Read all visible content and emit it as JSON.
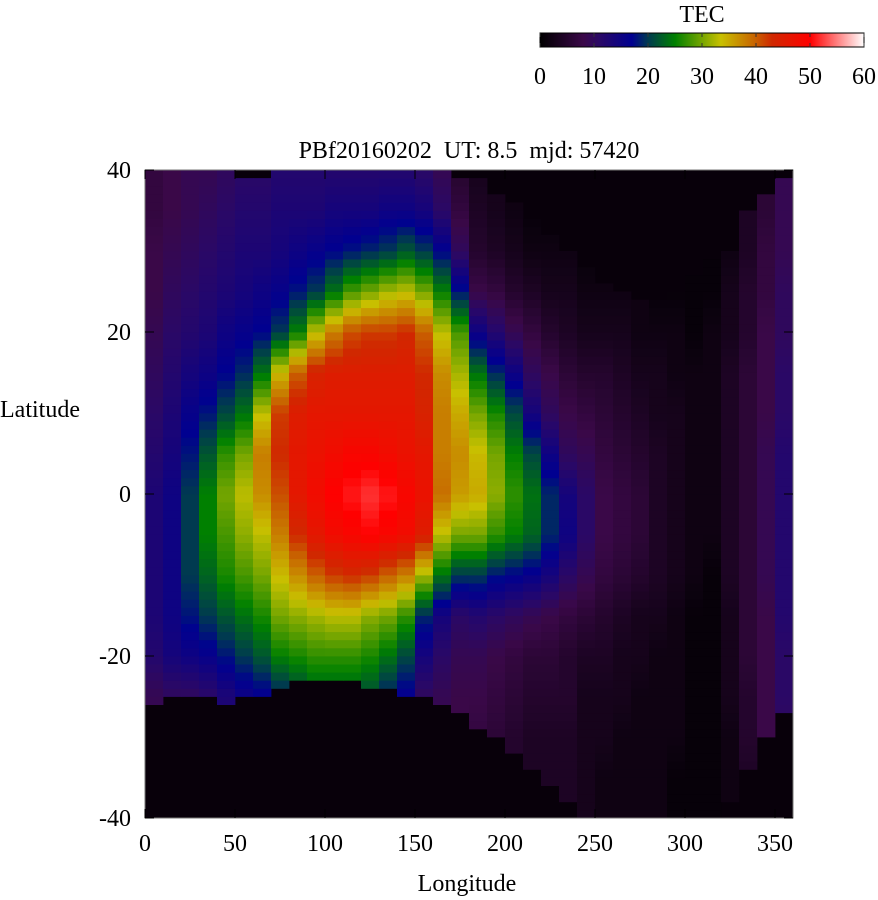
{
  "chart_data": {
    "type": "heatmap",
    "title": "PBf20160202  UT: 8.5  mjd: 57420",
    "xlabel": "Longitude",
    "ylabel": "Latitude",
    "xlim": [
      0,
      360
    ],
    "ylim": [
      -40,
      40
    ],
    "xticks": [
      "0",
      "50",
      "100",
      "150",
      "200",
      "250",
      "300",
      "350"
    ],
    "yticks": [
      "40",
      "20",
      "0",
      "-20",
      "-40"
    ],
    "colorbar": {
      "label": "TEC",
      "range": [
        0,
        60
      ],
      "ticks": [
        "0",
        "10",
        "20",
        "30",
        "40",
        "50",
        "60"
      ],
      "colormap": [
        {
          "v": 0,
          "c": "#000000"
        },
        {
          "v": 8,
          "c": "#3a0848"
        },
        {
          "v": 11,
          "c": "#2a0866"
        },
        {
          "v": 17,
          "c": "#000090"
        },
        {
          "v": 20,
          "c": "#003a50"
        },
        {
          "v": 25,
          "c": "#008000"
        },
        {
          "v": 33.5,
          "c": "#c8c000"
        },
        {
          "v": 40,
          "c": "#c86000"
        },
        {
          "v": 43,
          "c": "#d02800"
        },
        {
          "v": 50,
          "c": "#ff0000"
        },
        {
          "v": 60,
          "c": "#ffffff"
        }
      ]
    },
    "no_data_color": "#08000a",
    "lon_bin_width": 10,
    "lat_samples": [
      -40,
      -35,
      -30,
      -25,
      -20,
      -15,
      -10,
      -5,
      0,
      5,
      10,
      15,
      20,
      25,
      30,
      35,
      40
    ],
    "columns": [
      {
        "lon": 5,
        "lat_min": -26,
        "lat_max": 40,
        "tec": [
          9,
          9,
          9,
          9,
          12,
          13,
          13,
          13,
          13,
          12,
          11,
          10,
          9,
          8,
          8,
          7,
          7
        ]
      },
      {
        "lon": 15,
        "lat_min": -25,
        "lat_max": 40,
        "tec": [
          10,
          10,
          10,
          10,
          14,
          15,
          15,
          15,
          15,
          14,
          13,
          12,
          11,
          10,
          9,
          8,
          8
        ]
      },
      {
        "lon": 25,
        "lat_min": -25,
        "lat_max": 40,
        "tec": [
          10,
          10,
          10,
          10,
          15,
          18,
          20,
          20,
          20,
          18,
          16,
          14,
          12,
          11,
          10,
          9,
          9
        ]
      },
      {
        "lon": 35,
        "lat_min": -25,
        "lat_max": 40,
        "tec": [
          11,
          11,
          11,
          11,
          16,
          20,
          23,
          25,
          25,
          22,
          18,
          15,
          13,
          12,
          11,
          10,
          9
        ]
      },
      {
        "lon": 45,
        "lat_min": -26,
        "lat_max": 40,
        "tec": [
          13,
          13,
          13,
          13,
          18,
          22,
          26,
          28,
          30,
          27,
          21,
          17,
          15,
          13,
          12,
          11,
          10
        ]
      },
      {
        "lon": 55,
        "lat_min": -25,
        "lat_max": 39,
        "tec": [
          15,
          15,
          15,
          15,
          20,
          24,
          28,
          31,
          33,
          30,
          24,
          19,
          16,
          14,
          13,
          12,
          11
        ]
      },
      {
        "lon": 65,
        "lat_min": -25,
        "lat_max": 39,
        "tec": [
          16,
          16,
          16,
          16,
          22,
          26,
          30,
          33,
          37,
          38,
          33,
          24,
          17,
          15,
          13,
          12,
          11
        ]
      },
      {
        "lon": 75,
        "lat_min": -24,
        "lat_max": 40,
        "tec": [
          18,
          18,
          18,
          18,
          25,
          30,
          34,
          38,
          41,
          43,
          42,
          34,
          20,
          16,
          14,
          13,
          12
        ]
      },
      {
        "lon": 85,
        "lat_min": -23,
        "lat_max": 40,
        "tec": [
          20,
          20,
          20,
          20,
          26,
          31,
          37,
          43,
          46,
          46,
          45,
          40,
          25,
          18,
          15,
          13,
          12
        ]
      },
      {
        "lon": 95,
        "lat_min": -23,
        "lat_max": 40,
        "tec": [
          22,
          22,
          22,
          22,
          27,
          32,
          40,
          46,
          48,
          47,
          46,
          44,
          33,
          20,
          16,
          13,
          12
        ]
      },
      {
        "lon": 105,
        "lat_min": -23,
        "lat_max": 40,
        "tec": [
          22,
          22,
          22,
          22,
          27,
          33,
          42,
          48,
          50,
          48,
          46,
          45,
          38,
          24,
          17,
          14,
          12
        ]
      },
      {
        "lon": 115,
        "lat_min": -23,
        "lat_max": 40,
        "tec": [
          22,
          22,
          22,
          22,
          27,
          33,
          43,
          49,
          51,
          49,
          46,
          45,
          41,
          28,
          18,
          14,
          12
        ]
      },
      {
        "lon": 125,
        "lat_min": -24,
        "lat_max": 40,
        "tec": [
          21,
          21,
          21,
          21,
          26,
          31,
          42,
          50,
          52,
          49,
          46,
          45,
          42,
          30,
          19,
          14,
          12
        ]
      },
      {
        "lon": 135,
        "lat_min": -24,
        "lat_max": 40,
        "tec": [
          18,
          18,
          18,
          18,
          24,
          30,
          40,
          49,
          51,
          48,
          46,
          45,
          42,
          32,
          20,
          15,
          12
        ]
      },
      {
        "lon": 145,
        "lat_min": -25,
        "lat_max": 40,
        "tec": [
          16,
          16,
          16,
          16,
          21,
          27,
          38,
          48,
          49,
          47,
          46,
          45,
          43,
          33,
          22,
          15,
          12
        ]
      },
      {
        "lon": 155,
        "lat_min": -25,
        "lat_max": 40,
        "tec": [
          10,
          10,
          10,
          10,
          14,
          19,
          32,
          45,
          47,
          46,
          44,
          43,
          40,
          30,
          20,
          14,
          11
        ]
      },
      {
        "lon": 165,
        "lat_min": -26,
        "lat_max": 40,
        "tec": [
          9,
          9,
          9,
          9,
          11,
          14,
          24,
          33,
          39,
          38,
          38,
          37,
          33,
          25,
          17,
          11,
          9
        ]
      },
      {
        "lon": 175,
        "lat_min": -27,
        "lat_max": 39,
        "tec": [
          8,
          8,
          8,
          8,
          9,
          11,
          20,
          30,
          36,
          37,
          35,
          32,
          28,
          18,
          10,
          7,
          5
        ]
      },
      {
        "lon": 185,
        "lat_min": -29,
        "lat_max": 39,
        "tec": [
          7,
          7,
          7,
          8,
          9,
          12,
          20,
          30,
          35,
          34,
          30,
          24,
          15,
          8,
          5,
          4,
          3
        ]
      },
      {
        "lon": 195,
        "lat_min": -30,
        "lat_max": 37,
        "tec": [
          6,
          6,
          6,
          7,
          8,
          11,
          18,
          27,
          31,
          30,
          26,
          19,
          12,
          7,
          4,
          3,
          3
        ]
      },
      {
        "lon": 205,
        "lat_min": -32,
        "lat_max": 36,
        "tec": [
          5,
          5,
          5,
          6,
          7,
          10,
          17,
          25,
          27,
          25,
          21,
          15,
          9,
          5,
          3,
          2,
          2
        ]
      },
      {
        "lon": 215,
        "lat_min": -34,
        "lat_max": 34,
        "tec": [
          4,
          4,
          4,
          5,
          6,
          9,
          16,
          23,
          24,
          21,
          14,
          10,
          7,
          4,
          2,
          1,
          1
        ]
      },
      {
        "lon": 225,
        "lat_min": -36,
        "lat_max": 32,
        "tec": [
          4,
          4,
          4,
          5,
          6,
          8,
          14,
          19,
          19,
          15,
          10,
          8,
          5,
          3,
          2,
          1,
          1
        ]
      },
      {
        "lon": 235,
        "lat_min": -38,
        "lat_max": 30,
        "tec": [
          4,
          4,
          4,
          5,
          5,
          7,
          11,
          15,
          14,
          10,
          8,
          6,
          4,
          3,
          2,
          1,
          1
        ]
      },
      {
        "lon": 245,
        "lat_min": -40,
        "lat_max": 28,
        "tec": [
          3,
          3,
          3,
          3,
          4,
          6,
          9,
          11,
          11,
          9,
          7,
          5,
          3,
          2,
          1,
          1,
          1
        ]
      },
      {
        "lon": 255,
        "lat_min": -40,
        "lat_max": 26,
        "tec": [
          2,
          2,
          3,
          3,
          4,
          5,
          7,
          8,
          8,
          7,
          6,
          5,
          3,
          2,
          1,
          1,
          1
        ]
      },
      {
        "lon": 265,
        "lat_min": -40,
        "lat_max": 25,
        "tec": [
          2,
          2,
          2,
          3,
          3,
          4,
          6,
          7,
          7,
          6,
          5,
          4,
          3,
          2,
          1,
          1,
          1
        ]
      },
      {
        "lon": 275,
        "lat_min": -40,
        "lat_max": 24,
        "tec": [
          2,
          2,
          2,
          2,
          3,
          3,
          5,
          6,
          6,
          5,
          4,
          3,
          2,
          2,
          1,
          1,
          1
        ]
      },
      {
        "lon": 285,
        "lat_min": -40,
        "lat_max": 24,
        "tec": [
          2,
          2,
          2,
          2,
          2,
          3,
          4,
          4,
          4,
          4,
          3,
          3,
          2,
          1,
          1,
          1,
          1
        ]
      },
      {
        "lon": 295,
        "lat_min": -40,
        "lat_max": 25,
        "tec": [
          1,
          1,
          2,
          2,
          2,
          2,
          3,
          3,
          3,
          3,
          3,
          2,
          2,
          1,
          1,
          1,
          1
        ]
      },
      {
        "lon": 305,
        "lat_min": -40,
        "lat_max": 27,
        "tec": [
          1,
          1,
          1,
          1,
          1,
          1,
          2,
          2,
          2,
          2,
          2,
          2,
          1,
          1,
          1,
          1,
          1
        ]
      },
      {
        "lon": 315,
        "lat_min": -40,
        "lat_max": 29,
        "tec": [
          1,
          1,
          1,
          1,
          1,
          1,
          1,
          2,
          2,
          2,
          2,
          2,
          2,
          1,
          1,
          1,
          1
        ]
      },
      {
        "lon": 325,
        "lat_min": -38,
        "lat_max": 30,
        "tec": [
          2,
          2,
          2,
          3,
          3,
          3,
          4,
          4,
          4,
          4,
          4,
          4,
          3,
          3,
          2,
          2,
          2
        ]
      },
      {
        "lon": 335,
        "lat_min": -34,
        "lat_max": 35,
        "tec": [
          4,
          4,
          5,
          5,
          6,
          6,
          6,
          6,
          6,
          6,
          6,
          6,
          5,
          5,
          4,
          4,
          3
        ]
      },
      {
        "lon": 345,
        "lat_min": -30,
        "lat_max": 37,
        "tec": [
          6,
          7,
          8,
          8,
          8,
          8,
          9,
          9,
          9,
          9,
          8,
          8,
          8,
          7,
          7,
          6,
          6
        ]
      },
      {
        "lon": 355,
        "lat_min": -27,
        "lat_max": 39,
        "tec": [
          8,
          9,
          10,
          11,
          11,
          12,
          12,
          12,
          12,
          12,
          11,
          11,
          10,
          10,
          9,
          9,
          9
        ]
      }
    ]
  }
}
